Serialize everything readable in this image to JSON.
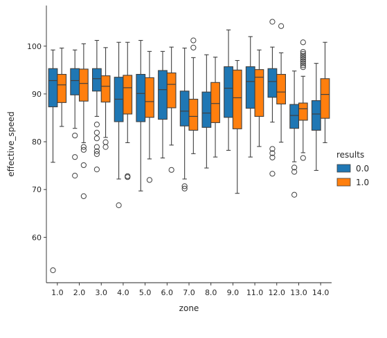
{
  "chart_data": {
    "type": "boxplot",
    "xlabel": "zone",
    "ylabel": "effective_speed",
    "ylim": [
      50.5,
      108.5
    ],
    "yticks": [
      60,
      70,
      80,
      90,
      100
    ],
    "categories": [
      "1.0",
      "2.0",
      "3.0",
      "4.0",
      "5.0",
      "6.0",
      "7.0",
      "8.0",
      "9.0",
      "11.0",
      "12.0",
      "13.0",
      "14.0"
    ],
    "legend": {
      "title": "results",
      "position": "right",
      "labels": [
        "0.0",
        "1.0"
      ]
    },
    "series": [
      {
        "name": "0.0",
        "color": "#1f77b4",
        "boxes": [
          {
            "q1": 87.3,
            "median": 92.8,
            "q3": 95.3,
            "whislo": 75.7,
            "whishi": 99.2,
            "fliers": [
              53.1
            ]
          },
          {
            "q1": 89.8,
            "median": 92.8,
            "q3": 95.3,
            "whislo": 82.8,
            "whishi": 99.2,
            "fliers": [
              81.3,
              76.8,
              72.9
            ]
          },
          {
            "q1": 90.6,
            "median": 93.2,
            "q3": 95.3,
            "whislo": 85.3,
            "whishi": 101.2,
            "fliers": [
              83.6,
              81.9,
              80.7,
              78.9,
              78.0,
              77.4,
              74.2
            ]
          },
          {
            "q1": 84.2,
            "median": 88.9,
            "q3": 93.5,
            "whislo": 72.2,
            "whishi": 100.8,
            "fliers": [
              66.7
            ]
          },
          {
            "q1": 84.2,
            "median": 90.1,
            "q3": 94.1,
            "whislo": 69.7,
            "whishi": 101.2,
            "fliers": []
          },
          {
            "q1": 84.7,
            "median": 90.9,
            "q3": 94.9,
            "whislo": 76.6,
            "whishi": 98.9,
            "fliers": []
          },
          {
            "q1": 83.3,
            "median": 86.4,
            "q3": 90.6,
            "whislo": 72.2,
            "whishi": 99.6,
            "fliers": [
              70.7,
              70.2
            ]
          },
          {
            "q1": 83.0,
            "median": 86.0,
            "q3": 90.4,
            "whislo": 74.5,
            "whishi": 98.2,
            "fliers": []
          },
          {
            "q1": 85.1,
            "median": 91.2,
            "q3": 95.7,
            "whislo": 78.2,
            "whishi": 103.4,
            "fliers": []
          },
          {
            "q1": 87.0,
            "median": 92.6,
            "q3": 95.7,
            "whislo": 76.8,
            "whishi": 102.0,
            "fliers": []
          },
          {
            "q1": 89.3,
            "median": 92.6,
            "q3": 95.3,
            "whislo": 84.1,
            "whishi": 99.8,
            "fliers": [
              105.1,
              78.5,
              77.6,
              76.7,
              73.3
            ]
          },
          {
            "q1": 82.8,
            "median": 85.5,
            "q3": 87.8,
            "whislo": 75.8,
            "whishi": 94.8,
            "fliers": [
              74.6,
              73.7,
              68.9
            ]
          },
          {
            "q1": 82.4,
            "median": 85.8,
            "q3": 88.6,
            "whislo": 74.0,
            "whishi": 96.4,
            "fliers": []
          }
        ]
      },
      {
        "name": "1.0",
        "color": "#ff7f0e",
        "boxes": [
          {
            "q1": 88.2,
            "median": 91.9,
            "q3": 94.1,
            "whislo": 83.2,
            "whishi": 99.6,
            "fliers": []
          },
          {
            "q1": 88.5,
            "median": 92.2,
            "q3": 95.2,
            "whislo": 79.8,
            "whishi": 100.5,
            "fliers": [
              78.9,
              78.3,
              75.1,
              68.6
            ]
          },
          {
            "q1": 88.3,
            "median": 91.6,
            "q3": 93.8,
            "whislo": 80.9,
            "whishi": 99.7,
            "fliers": [
              79.9,
              78.9
            ]
          },
          {
            "q1": 85.8,
            "median": 91.3,
            "q3": 93.9,
            "whislo": 79.8,
            "whishi": 100.8,
            "fliers": [
              72.8,
              72.6
            ]
          },
          {
            "q1": 85.1,
            "median": 88.4,
            "q3": 93.4,
            "whislo": 76.4,
            "whishi": 98.9,
            "fliers": [
              72.0
            ]
          },
          {
            "q1": 87.1,
            "median": 92.0,
            "q3": 94.4,
            "whislo": 79.3,
            "whishi": 99.8,
            "fliers": [
              74.1
            ]
          },
          {
            "q1": 82.4,
            "median": 85.3,
            "q3": 88.9,
            "whislo": 77.5,
            "whishi": 97.6,
            "fliers": [
              101.2,
              99.7
            ]
          },
          {
            "q1": 84.0,
            "median": 88.0,
            "q3": 92.4,
            "whislo": 76.8,
            "whishi": 97.7,
            "fliers": []
          },
          {
            "q1": 82.7,
            "median": 89.2,
            "q3": 95.0,
            "whislo": 69.2,
            "whishi": 97.0,
            "fliers": []
          },
          {
            "q1": 85.3,
            "median": 93.5,
            "q3": 95.1,
            "whislo": 79.0,
            "whishi": 99.2,
            "fliers": []
          },
          {
            "q1": 87.9,
            "median": 90.4,
            "q3": 94.1,
            "whislo": 79.9,
            "whishi": 98.6,
            "fliers": [
              104.2
            ]
          },
          {
            "q1": 84.5,
            "median": 86.9,
            "q3": 88.1,
            "whislo": 77.7,
            "whishi": 93.7,
            "fliers": [
              100.8,
              98.8,
              98.4,
              98.0,
              97.6,
              97.2,
              96.8,
              96.4,
              96.0,
              95.6,
              76.6
            ]
          },
          {
            "q1": 84.9,
            "median": 89.9,
            "q3": 93.2,
            "whislo": 79.8,
            "whishi": 100.8,
            "fliers": []
          }
        ]
      }
    ]
  }
}
